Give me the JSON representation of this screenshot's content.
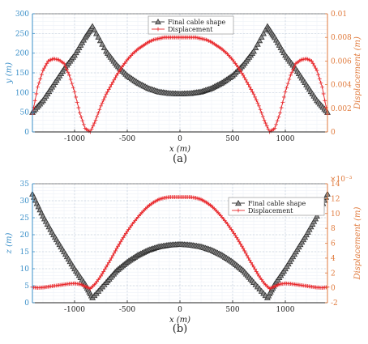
{
  "chart_data": [
    {
      "type": "line",
      "caption": "(a)",
      "xlabel": "x (m)",
      "ylabel_left": "y (m)",
      "ylabel_right": "Displacement (m)",
      "xlim": [
        -1400,
        1400
      ],
      "ylim_left": [
        0,
        300
      ],
      "ylim_right": [
        0,
        0.01
      ],
      "xticks": [
        -1000,
        -500,
        0,
        500,
        1000
      ],
      "yticks_left": [
        0,
        50,
        100,
        150,
        200,
        250,
        300
      ],
      "yticks_right": [
        "0",
        "0.002",
        "0.004",
        "0.006",
        "0.008",
        "0.01"
      ],
      "yticks_right_values": [
        0,
        0.002,
        0.004,
        0.006,
        0.008,
        0.01
      ],
      "grid": true,
      "legend": "top-center",
      "series": [
        {
          "name": "Final cable shape",
          "axis": "left",
          "color": "#2b2b2b",
          "marker": "triangle",
          "x": [
            -1400,
            -1300,
            -1200,
            -1100,
            -1000,
            -900,
            -830,
            -700,
            -600,
            -500,
            -400,
            -300,
            -200,
            -100,
            0,
            100,
            200,
            300,
            400,
            500,
            600,
            700,
            830,
            900,
            1000,
            1100,
            1200,
            1300,
            1400
          ],
          "y": [
            50,
            80,
            120,
            160,
            195,
            240,
            268,
            205,
            170,
            143,
            125,
            111,
            102,
            98,
            97,
            98,
            102,
            111,
            125,
            143,
            170,
            205,
            268,
            240,
            195,
            160,
            120,
            80,
            50
          ]
        },
        {
          "name": "Displacement",
          "axis": "right",
          "color": "#e8262a",
          "marker": "plus",
          "x": [
            -1400,
            -1350,
            -1300,
            -1250,
            -1200,
            -1150,
            -1100,
            -1050,
            -1000,
            -950,
            -900,
            -850,
            -800,
            -750,
            -700,
            -650,
            -600,
            -550,
            -500,
            -450,
            -400,
            -350,
            -300,
            -250,
            -200,
            -150,
            -100,
            -50,
            0,
            50,
            100,
            150,
            200,
            250,
            300,
            350,
            400,
            450,
            500,
            550,
            600,
            650,
            700,
            750,
            800,
            850,
            900,
            950,
            1000,
            1050,
            1100,
            1150,
            1200,
            1250,
            1300,
            1350,
            1400
          ],
          "y": [
            0.0015,
            0.0038,
            0.0052,
            0.006,
            0.0062,
            0.0061,
            0.0058,
            0.0048,
            0.0034,
            0.0016,
            0.0003,
            0.0,
            0.001,
            0.0022,
            0.0032,
            0.004,
            0.0048,
            0.0055,
            0.0061,
            0.0066,
            0.007,
            0.0073,
            0.0076,
            0.0078,
            0.0079,
            0.008,
            0.008,
            0.008,
            0.008,
            0.008,
            0.008,
            0.008,
            0.0079,
            0.0078,
            0.0076,
            0.0073,
            0.007,
            0.0066,
            0.0061,
            0.0055,
            0.0048,
            0.004,
            0.0032,
            0.0022,
            0.001,
            0.0,
            0.0003,
            0.0016,
            0.0034,
            0.0048,
            0.0058,
            0.0061,
            0.0062,
            0.006,
            0.0052,
            0.0038,
            0.0015
          ]
        }
      ]
    },
    {
      "type": "line",
      "caption": "(b)",
      "xlabel": "x (m)",
      "ylabel_left": "z (m)",
      "ylabel_right": "Displacement (m)",
      "right_multiplier": "×10⁻³",
      "xlim": [
        -1400,
        1400
      ],
      "ylim_left": [
        0,
        35
      ],
      "ylim_right": [
        -2,
        14
      ],
      "xticks": [
        -1000,
        -500,
        0,
        500,
        1000
      ],
      "yticks_left": [
        0,
        5,
        10,
        15,
        20,
        25,
        30,
        35
      ],
      "yticks_right": [
        "-2",
        "0",
        "2",
        "4",
        "6",
        "8",
        "10",
        "12",
        "14"
      ],
      "yticks_right_values": [
        -2,
        0,
        2,
        4,
        6,
        8,
        10,
        12,
        14
      ],
      "grid": true,
      "legend": "top-right",
      "series": [
        {
          "name": "Final cable shape",
          "axis": "left",
          "color": "#2b2b2b",
          "marker": "triangle",
          "x": [
            -1400,
            -1300,
            -1200,
            -1100,
            -1000,
            -900,
            -830,
            -700,
            -600,
            -500,
            -400,
            -300,
            -200,
            -100,
            0,
            100,
            200,
            300,
            400,
            500,
            600,
            700,
            830,
            900,
            1000,
            1100,
            1200,
            1300,
            1400
          ],
          "y": [
            32,
            25.5,
            20,
            15,
            10,
            5.5,
            1.5,
            6,
            9.5,
            12,
            14,
            15.5,
            16.5,
            17,
            17.2,
            17,
            16.5,
            15.5,
            14,
            12,
            9.5,
            6,
            1.5,
            5.5,
            10,
            15,
            20,
            25.5,
            32
          ]
        },
        {
          "name": "Displacement",
          "axis": "right",
          "color": "#e8262a",
          "marker": "plus",
          "x": [
            -1400,
            -1350,
            -1300,
            -1250,
            -1200,
            -1150,
            -1100,
            -1050,
            -1000,
            -950,
            -900,
            -850,
            -800,
            -750,
            -700,
            -650,
            -600,
            -550,
            -500,
            -450,
            -400,
            -350,
            -300,
            -250,
            -200,
            -150,
            -100,
            -50,
            0,
            50,
            100,
            150,
            200,
            250,
            300,
            350,
            400,
            450,
            500,
            550,
            600,
            650,
            700,
            750,
            800,
            850,
            900,
            950,
            1000,
            1050,
            1100,
            1150,
            1200,
            1250,
            1300,
            1350,
            1400
          ],
          "y": [
            0.1,
            0.0,
            0.05,
            0.15,
            0.25,
            0.35,
            0.45,
            0.55,
            0.6,
            0.5,
            0.2,
            -0.1,
            0.6,
            1.6,
            2.8,
            4.0,
            5.3,
            6.5,
            7.6,
            8.6,
            9.5,
            10.3,
            11.0,
            11.5,
            11.9,
            12.1,
            12.2,
            12.2,
            12.2,
            12.2,
            12.2,
            12.1,
            11.9,
            11.5,
            11.0,
            10.3,
            9.5,
            8.6,
            7.6,
            6.5,
            5.3,
            4.0,
            2.8,
            1.6,
            0.6,
            -0.1,
            0.2,
            0.5,
            0.6,
            0.55,
            0.45,
            0.35,
            0.25,
            0.15,
            0.05,
            0.0,
            0.1
          ]
        }
      ]
    }
  ]
}
